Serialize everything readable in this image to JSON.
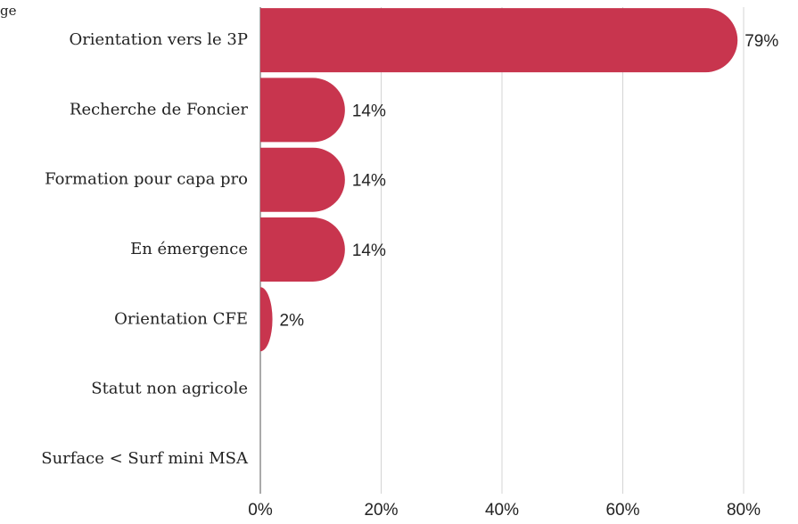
{
  "chart_data": {
    "type": "hbar",
    "title": "ge",
    "categories": [
      "Orientation vers le 3P",
      "Recherche de Foncier",
      "Formation pour capa pro",
      "En émergence",
      "Orientation CFE",
      "Statut non agricole",
      "Surface < Surf mini MSA"
    ],
    "values": [
      79,
      14,
      14,
      14,
      2,
      0,
      0
    ],
    "value_labels": [
      "79%",
      "14%",
      "14%",
      "14%",
      "2%",
      null,
      null
    ],
    "color": "#c8354e",
    "xlim": [
      0,
      80
    ],
    "xticks": [
      {
        "value": 0,
        "label": "0%"
      },
      {
        "value": 20,
        "label": "20%"
      },
      {
        "value": 40,
        "label": "40%"
      },
      {
        "value": 60,
        "label": "60%"
      },
      {
        "value": 80,
        "label": "80%"
      }
    ],
    "grid": true
  }
}
